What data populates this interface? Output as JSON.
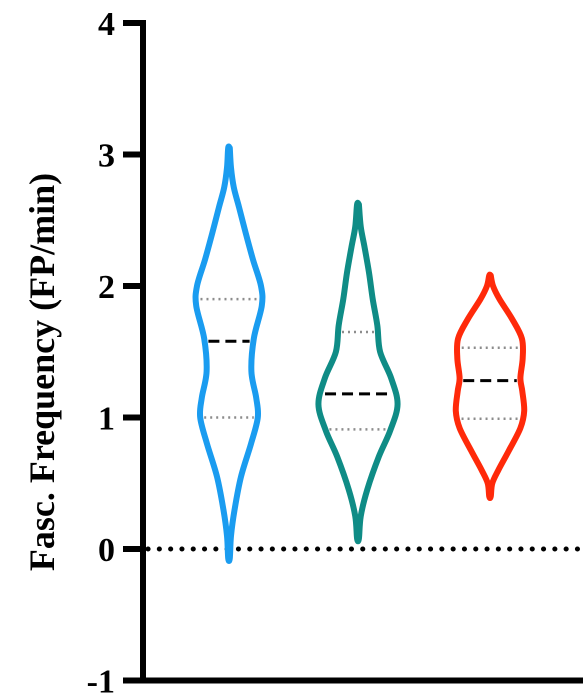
{
  "chart_data": {
    "type": "violin",
    "ylabel": "Fasc. Frequency (FP/min)",
    "ylim": [
      -1,
      4
    ],
    "yticks": [
      "-1",
      "0",
      "1",
      "2",
      "3",
      "4"
    ],
    "reference_line": {
      "y": 0,
      "style": "dotted",
      "color": "#000000"
    },
    "series": [
      {
        "color": "#1a9cf0",
        "min": -0.07,
        "max": 3.05,
        "q1": 1.0,
        "median": 1.58,
        "q3": 1.9,
        "density": [
          [
            -0.07,
            0.02
          ],
          [
            0.1,
            0.05
          ],
          [
            0.3,
            0.14
          ],
          [
            0.55,
            0.3
          ],
          [
            0.8,
            0.55
          ],
          [
            1.0,
            0.72
          ],
          [
            1.15,
            0.68
          ],
          [
            1.35,
            0.56
          ],
          [
            1.6,
            0.62
          ],
          [
            1.85,
            0.82
          ],
          [
            2.0,
            0.8
          ],
          [
            2.2,
            0.6
          ],
          [
            2.4,
            0.42
          ],
          [
            2.6,
            0.25
          ],
          [
            2.75,
            0.12
          ],
          [
            2.9,
            0.05
          ],
          [
            3.05,
            0.02
          ]
        ]
      },
      {
        "color": "#0f8c86",
        "min": 0.08,
        "max": 2.62,
        "q1": 0.91,
        "median": 1.18,
        "q3": 1.65,
        "density": [
          [
            0.08,
            0.02
          ],
          [
            0.25,
            0.06
          ],
          [
            0.45,
            0.2
          ],
          [
            0.7,
            0.45
          ],
          [
            0.9,
            0.7
          ],
          [
            1.1,
            0.86
          ],
          [
            1.3,
            0.72
          ],
          [
            1.5,
            0.48
          ],
          [
            1.7,
            0.42
          ],
          [
            1.9,
            0.32
          ],
          [
            2.1,
            0.24
          ],
          [
            2.3,
            0.14
          ],
          [
            2.45,
            0.06
          ],
          [
            2.62,
            0.02
          ]
        ]
      },
      {
        "color": "#ff2a0a",
        "min": 0.4,
        "max": 2.08,
        "q1": 0.99,
        "median": 1.28,
        "q3": 1.53,
        "density": [
          [
            0.4,
            0.02
          ],
          [
            0.5,
            0.06
          ],
          [
            0.6,
            0.22
          ],
          [
            0.75,
            0.5
          ],
          [
            0.92,
            0.8
          ],
          [
            1.05,
            0.9
          ],
          [
            1.2,
            0.85
          ],
          [
            1.3,
            0.8
          ],
          [
            1.45,
            0.86
          ],
          [
            1.6,
            0.84
          ],
          [
            1.75,
            0.58
          ],
          [
            1.9,
            0.25
          ],
          [
            2.0,
            0.08
          ],
          [
            2.08,
            0.02
          ]
        ]
      }
    ],
    "quartile_line_color": "#8c8c8c",
    "median_line_color": "#000000"
  }
}
